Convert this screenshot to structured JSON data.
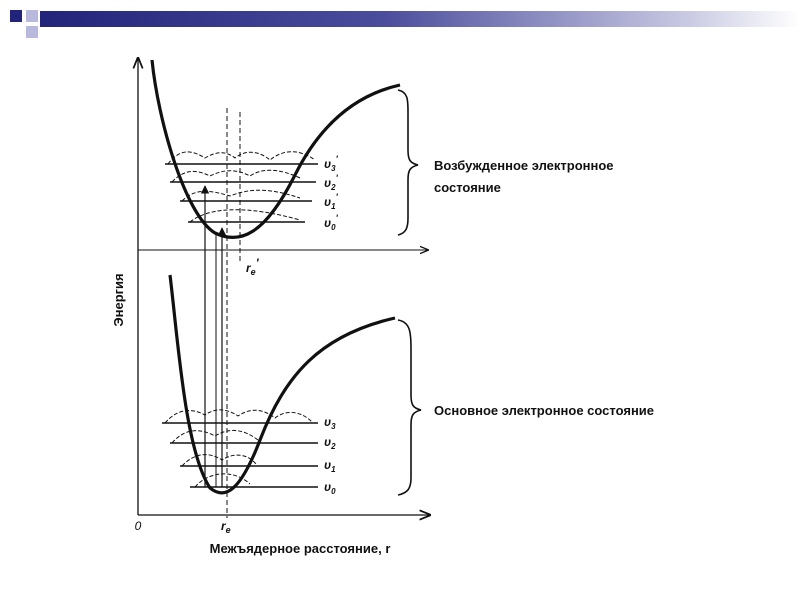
{
  "diagram": {
    "y_axis_label": "Энергия",
    "x_axis_label": "Межъядерное расстояние, r",
    "origin_label": "0",
    "re_label": "r",
    "re_subscript": "e",
    "re_excited_label": "r",
    "re_excited_subscript": "e",
    "re_excited_prime": "'",
    "excited_state_label_line1": "Возбужденное электронное",
    "excited_state_label_line2": "состояние",
    "ground_state_label": "Основное электронное состояние",
    "excited_levels": [
      {
        "symbol": "υ",
        "sub": "3",
        "prime": "'"
      },
      {
        "symbol": "υ",
        "sub": "2",
        "prime": "'"
      },
      {
        "symbol": "υ",
        "sub": "1",
        "prime": "'"
      },
      {
        "symbol": "υ",
        "sub": "0",
        "prime": "'"
      }
    ],
    "ground_levels": [
      {
        "symbol": "υ",
        "sub": "3"
      },
      {
        "symbol": "υ",
        "sub": "2"
      },
      {
        "symbol": "υ",
        "sub": "1"
      },
      {
        "symbol": "υ",
        "sub": "0"
      }
    ]
  },
  "colors": {
    "curve": "#111111",
    "header_dark": "#22247a",
    "square_light": "#b8b9dc",
    "background": "#ffffff"
  }
}
